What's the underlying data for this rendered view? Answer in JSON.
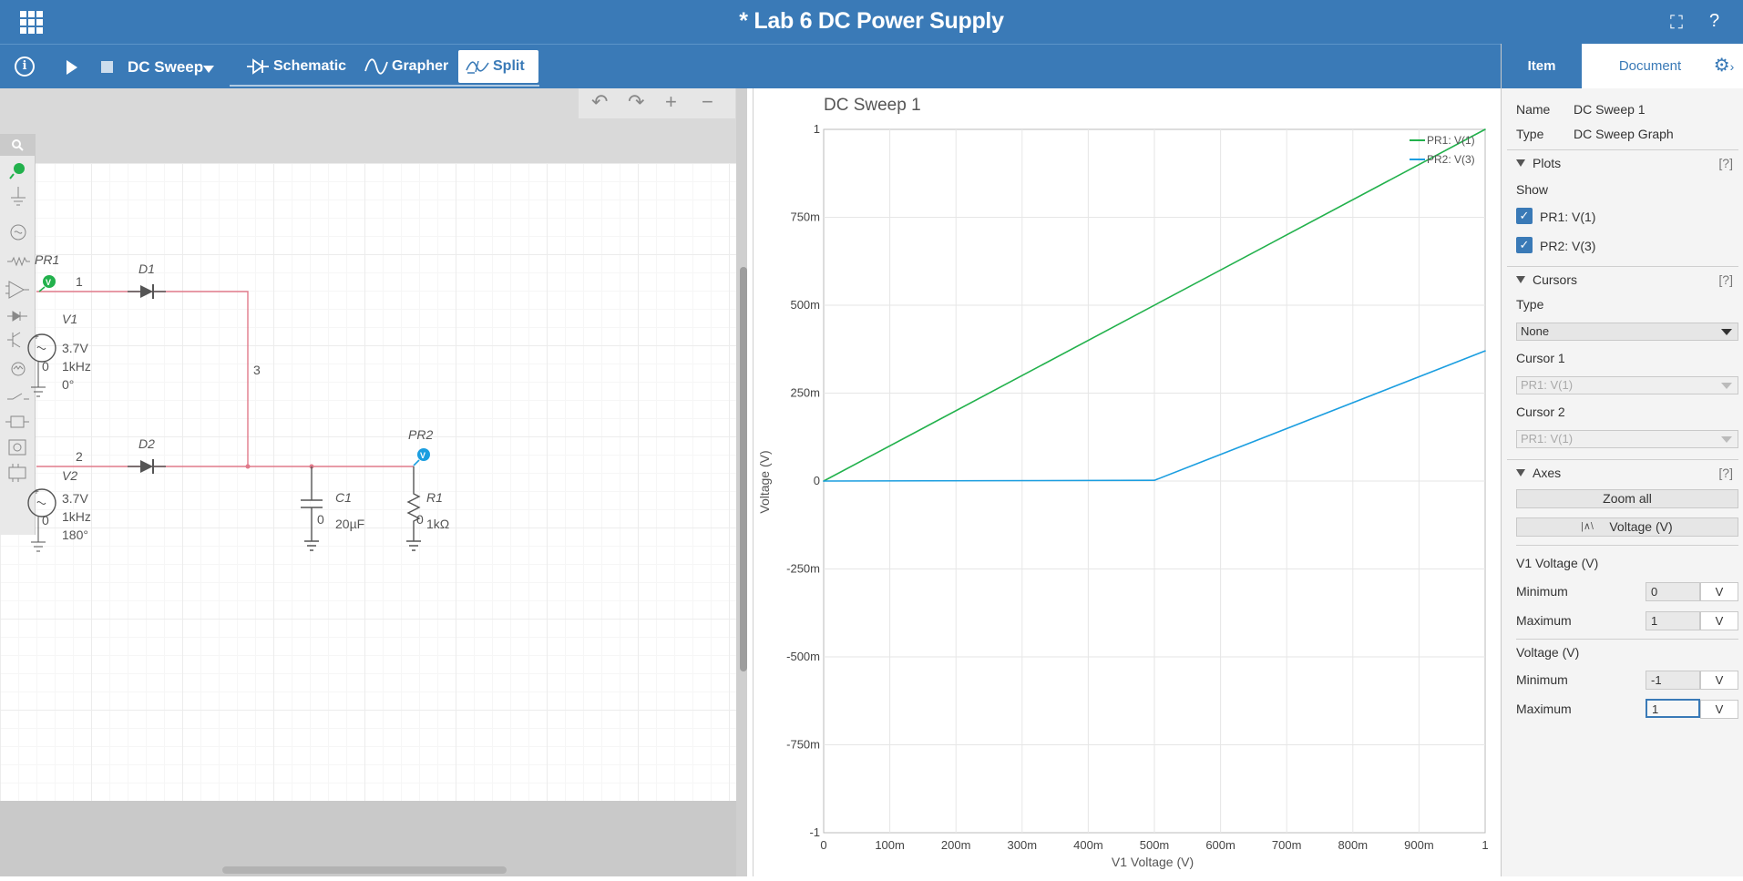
{
  "app": {
    "title": "* Lab 6 DC Power Supply",
    "fullscreen_icon": "fullscreen-icon",
    "help_label": "?",
    "accent": "#3a7ab7"
  },
  "toolbar": {
    "info_label": "i",
    "sweep_label": "DC Sweep",
    "tabs": [
      {
        "label": "Schematic",
        "selected": false
      },
      {
        "label": "Grapher",
        "selected": false
      },
      {
        "label": "Split",
        "selected": true
      }
    ]
  },
  "schematic": {
    "probes": [
      {
        "label": "PR1",
        "badge": "V",
        "color": "#22b14c"
      },
      {
        "label": "PR2",
        "badge": "V",
        "color": "#1b9ee0"
      }
    ],
    "nodes": [
      "1",
      "2",
      "3"
    ],
    "components": {
      "d1": "D1",
      "d2": "D2",
      "v1": {
        "name": "V1",
        "voltage": "3.7V",
        "freq": "1kHz",
        "phase": "0°",
        "zero": "0"
      },
      "v2": {
        "name": "V2",
        "voltage": "3.7V",
        "freq": "1kHz",
        "phase": "180°",
        "zero": "0"
      },
      "c1": {
        "name": "C1",
        "value": "20µF",
        "zero": "0"
      },
      "r1": {
        "name": "R1",
        "value": "1kΩ",
        "zero": "0"
      }
    },
    "wire_color": "#e07a8a"
  },
  "graph_title": "DC Sweep 1",
  "chart_data": {
    "type": "line",
    "title": "DC Sweep 1",
    "xlabel": "V1 Voltage (V)",
    "ylabel": "Voltage (V)",
    "xlim": [
      0,
      1
    ],
    "ylim": [
      -1,
      1
    ],
    "x_ticks": [
      "0",
      "100m",
      "200m",
      "300m",
      "400m",
      "500m",
      "600m",
      "700m",
      "800m",
      "900m",
      "1"
    ],
    "y_ticks": [
      "1",
      "750m",
      "500m",
      "250m",
      "0",
      "-250m",
      "-500m",
      "-750m",
      "-1"
    ],
    "grid": true,
    "legend_position": "top-right",
    "series": [
      {
        "name": "PR1: V(1)",
        "color": "#22b14c",
        "x": [
          0,
          1
        ],
        "y": [
          0,
          1
        ]
      },
      {
        "name": "PR2: V(3)",
        "color": "#1b9ee0",
        "x": [
          0,
          0.5,
          1
        ],
        "y": [
          0,
          0.002,
          0.37
        ]
      }
    ]
  },
  "panel": {
    "tabs": {
      "item": "Item",
      "document": "Document"
    },
    "name_label": "Name",
    "name_value": "DC Sweep 1",
    "type_label": "Type",
    "type_value": "DC Sweep Graph",
    "help": "[?]",
    "plots": {
      "header": "Plots",
      "show_label": "Show",
      "items": [
        {
          "label": "PR1: V(1)",
          "checked": true
        },
        {
          "label": "PR2: V(3)",
          "checked": true
        }
      ]
    },
    "cursors": {
      "header": "Cursors",
      "type_label": "Type",
      "type_value": "None",
      "cursor1_label": "Cursor 1",
      "cursor1_value": "PR1: V(1)",
      "cursor2_label": "Cursor 2",
      "cursor2_value": "PR1: V(1)"
    },
    "axes": {
      "header": "Axes",
      "zoom_all": "Zoom all",
      "axis_select": "Voltage (V)",
      "x_group": "V1 Voltage (V)",
      "y_group": "Voltage (V)",
      "min_label": "Minimum",
      "max_label": "Maximum",
      "x_min": "0",
      "x_max": "1",
      "y_min": "-1",
      "y_max": "1",
      "unit": "V"
    }
  }
}
